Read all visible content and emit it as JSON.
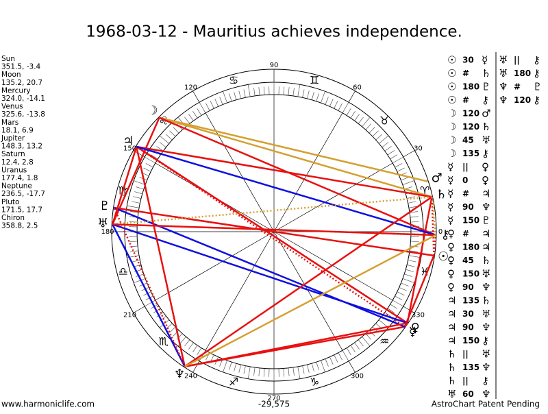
{
  "title": "1968-03-12 - Mauritius achieves independence.",
  "planets": [
    {
      "name": "Sun",
      "glyph": "☉",
      "coords": "351.5, -3.4",
      "longitude": 351.5
    },
    {
      "name": "Moon",
      "glyph": "☽",
      "coords": "135.2, 20.7",
      "longitude": 135.2
    },
    {
      "name": "Mercury",
      "glyph": "☿",
      "coords": "324.0, -14.1",
      "longitude": 324.0
    },
    {
      "name": "Venus",
      "glyph": "♀",
      "coords": "325.6, -13.8",
      "longitude": 325.6
    },
    {
      "name": "Mars",
      "glyph": "♂",
      "coords": "18.1, 6.9",
      "longitude": 18.1
    },
    {
      "name": "Jupiter",
      "glyph": "♃",
      "coords": "148.3, 13.2",
      "longitude": 148.3
    },
    {
      "name": "Saturn",
      "glyph": "♄",
      "coords": "12.4, 2.8",
      "longitude": 12.4
    },
    {
      "name": "Uranus",
      "glyph": "♅",
      "coords": "177.4, 1.8",
      "longitude": 177.4
    },
    {
      "name": "Neptune",
      "glyph": "♆",
      "coords": "236.5, -17.7",
      "longitude": 236.5
    },
    {
      "name": "Pluto",
      "glyph": "♇",
      "coords": "171.5, 17.7",
      "longitude": 171.5
    },
    {
      "name": "Chiron",
      "glyph": "⚷",
      "coords": "358.8, 2.5",
      "longitude": 358.8
    }
  ],
  "degree_labels": [
    0,
    30,
    60,
    90,
    120,
    150,
    180,
    210,
    240,
    270,
    300,
    330
  ],
  "zodiac": [
    "♈",
    "♉",
    "♊",
    "♋",
    "♌",
    "♍",
    "♎",
    "♏",
    "♐",
    "♑",
    "♒",
    "♓"
  ],
  "aspects": [
    {
      "p1": "☉",
      "aspect": "30",
      "p2": "☿",
      "color": "#e81010"
    },
    {
      "p1": "☉",
      "aspect": "#",
      "p2": "♄",
      "color": "#e81010",
      "line": "dotted"
    },
    {
      "p1": "☉",
      "aspect": "180",
      "p2": "♇",
      "color": "#e81010"
    },
    {
      "p1": "☉",
      "aspect": "#",
      "p2": "⚷",
      "color": "#e81010",
      "line": "dotted"
    },
    {
      "p1": "☽",
      "aspect": "120",
      "p2": "♂",
      "color": "#d4a030"
    },
    {
      "p1": "☽",
      "aspect": "120",
      "p2": "♄",
      "color": "#d4a030"
    },
    {
      "p1": "☽",
      "aspect": "45",
      "p2": "♅",
      "color": "#e81010"
    },
    {
      "p1": "☽",
      "aspect": "135",
      "p2": "⚷",
      "color": "#e81010"
    },
    {
      "p1": "☿",
      "aspect": "||",
      "p2": "♀",
      "color": "#d4a030",
      "line": "dotted"
    },
    {
      "p1": "☿",
      "aspect": "0",
      "p2": "♀",
      "color": "#e81010"
    },
    {
      "p1": "☿",
      "aspect": "#",
      "p2": "♃",
      "color": "#e81010",
      "line": "dotted"
    },
    {
      "p1": "☿",
      "aspect": "90",
      "p2": "♆",
      "color": "#e81010"
    },
    {
      "p1": "☿",
      "aspect": "150",
      "p2": "♇",
      "color": "#1010e0"
    },
    {
      "p1": "♀",
      "aspect": "#",
      "p2": "♃",
      "color": "#e81010",
      "line": "dotted"
    },
    {
      "p1": "♀",
      "aspect": "180",
      "p2": "♃",
      "color": "#e81010"
    },
    {
      "p1": "♀",
      "aspect": "45",
      "p2": "♄",
      "color": "#e81010"
    },
    {
      "p1": "♀",
      "aspect": "150",
      "p2": "♅",
      "color": "#1010e0"
    },
    {
      "p1": "♀",
      "aspect": "90",
      "p2": "♆",
      "color": "#e81010"
    },
    {
      "p1": "♃",
      "aspect": "135",
      "p2": "♄",
      "color": "#e81010"
    },
    {
      "p1": "♃",
      "aspect": "30",
      "p2": "♅",
      "color": "#e81010"
    },
    {
      "p1": "♃",
      "aspect": "90",
      "p2": "♆",
      "color": "#e81010"
    },
    {
      "p1": "♃",
      "aspect": "150",
      "p2": "⚷",
      "color": "#1010e0"
    },
    {
      "p1": "♄",
      "aspect": "||",
      "p2": "♅",
      "color": "#d4a030",
      "line": "dotted"
    },
    {
      "p1": "♄",
      "aspect": "135",
      "p2": "♆",
      "color": "#e81010"
    },
    {
      "p1": "♄",
      "aspect": "||",
      "p2": "⚷",
      "color": "#d4a030",
      "line": "dotted"
    },
    {
      "p1": "♅",
      "aspect": "60",
      "p2": "♆",
      "color": "#1010e0"
    },
    {
      "p1": "♅",
      "aspect": "||",
      "p2": "⚷",
      "color": "#d4a030",
      "line": "dotted"
    },
    {
      "p1": "♅",
      "aspect": "180",
      "p2": "⚷",
      "color": "#e81010"
    },
    {
      "p1": "♆",
      "aspect": "#",
      "p2": "♇",
      "color": "#e81010",
      "line": "dotted"
    },
    {
      "p1": "♆",
      "aspect": "120",
      "p2": "⚷",
      "color": "#d4a030"
    }
  ],
  "center_value": "-29,575",
  "footer_left": "www.harmoniclife.com",
  "footer_right": "AstroChart Patent Pending"
}
